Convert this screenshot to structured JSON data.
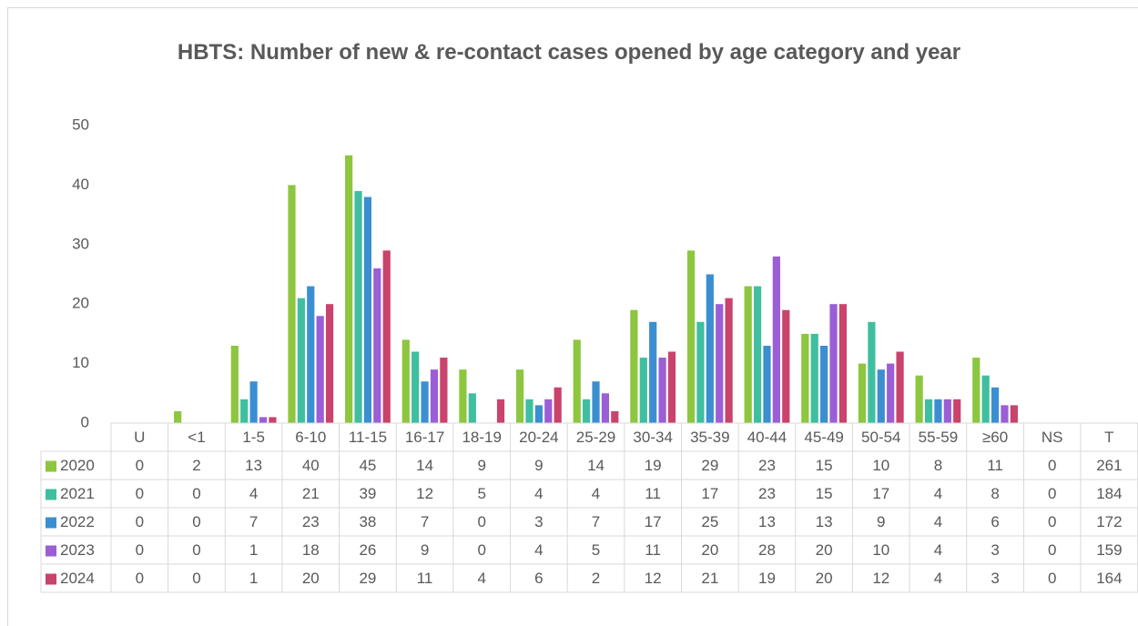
{
  "chart_data": {
    "type": "bar",
    "title": "HBTS: Number of new & re-contact cases opened by age category and year",
    "categories": [
      "U",
      "<1",
      "1-5",
      "6-10",
      "11-15",
      "16-17",
      "18-19",
      "20-24",
      "25-29",
      "30-34",
      "35-39",
      "40-44",
      "45-49",
      "50-54",
      "55-59",
      "≥60",
      "NS"
    ],
    "total_label": "T",
    "ylim": [
      0,
      50
    ],
    "yticks": [
      0,
      10,
      20,
      30,
      40,
      50
    ],
    "grid": false,
    "series": [
      {
        "name": "2020",
        "color": "#8dc63f",
        "values": [
          0,
          2,
          13,
          40,
          45,
          14,
          9,
          9,
          14,
          19,
          29,
          23,
          15,
          10,
          8,
          11,
          0
        ],
        "total": 261
      },
      {
        "name": "2021",
        "color": "#3fbf9f",
        "values": [
          0,
          0,
          4,
          21,
          39,
          12,
          5,
          4,
          4,
          11,
          17,
          23,
          15,
          17,
          4,
          8,
          0
        ],
        "total": 184
      },
      {
        "name": "2022",
        "color": "#3b8fd1",
        "values": [
          0,
          0,
          7,
          23,
          38,
          7,
          0,
          3,
          7,
          17,
          25,
          13,
          13,
          9,
          4,
          6,
          0
        ],
        "total": 172
      },
      {
        "name": "2023",
        "color": "#9b5ed6",
        "values": [
          0,
          0,
          1,
          18,
          26,
          9,
          0,
          4,
          5,
          11,
          20,
          28,
          20,
          10,
          4,
          3,
          0
        ],
        "total": 159
      },
      {
        "name": "2024",
        "color": "#c9436c",
        "values": [
          0,
          0,
          1,
          20,
          29,
          11,
          4,
          6,
          2,
          12,
          21,
          19,
          20,
          12,
          4,
          3,
          0
        ],
        "total": 164
      }
    ]
  }
}
